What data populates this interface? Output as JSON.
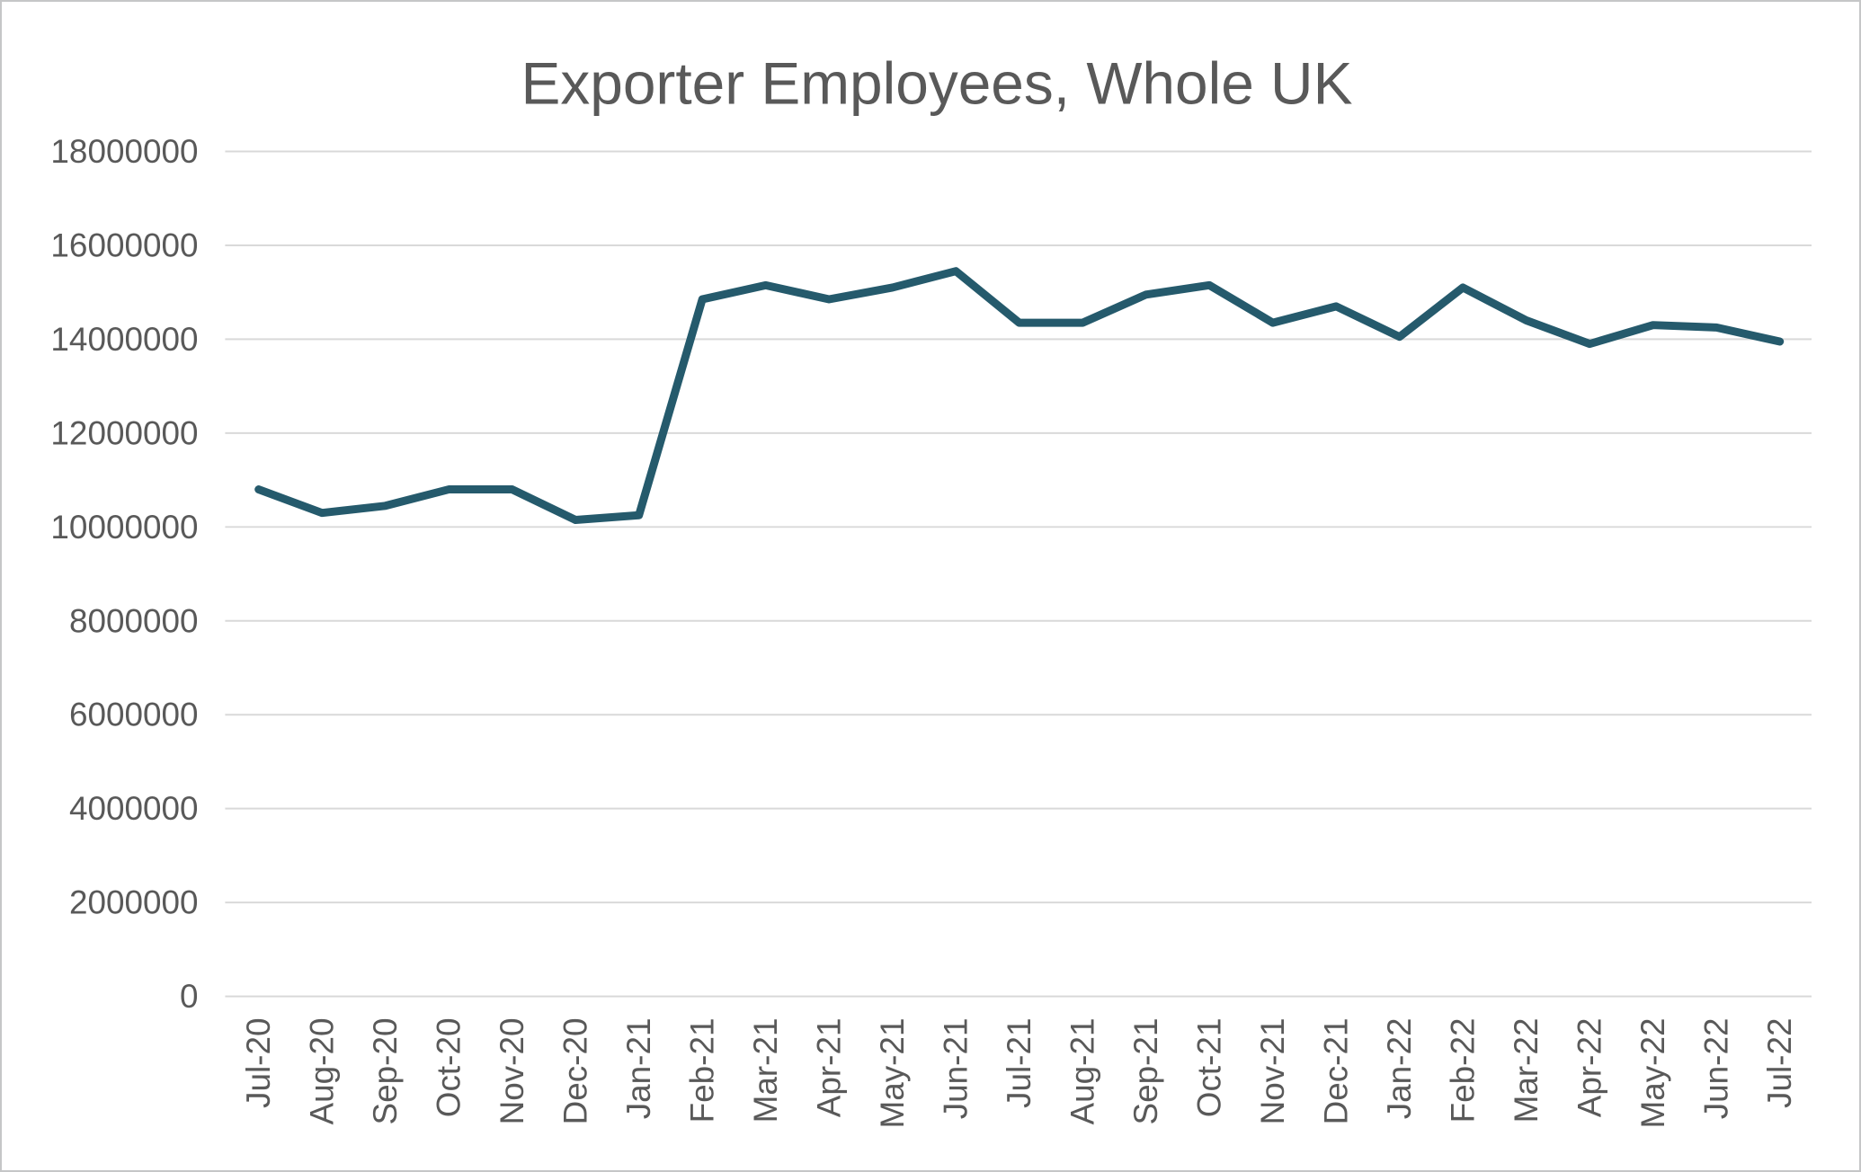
{
  "frame": {
    "background": "#ffffff",
    "border_color": "#c5c6c7"
  },
  "chart_data": {
    "type": "line",
    "title": "Exporter Employees, Whole UK",
    "categories": [
      "Jul-20",
      "Aug-20",
      "Sep-20",
      "Oct-20",
      "Nov-20",
      "Dec-20",
      "Jan-21",
      "Feb-21",
      "Mar-21",
      "Apr-21",
      "May-21",
      "Jun-21",
      "Jul-21",
      "Aug-21",
      "Sep-21",
      "Oct-21",
      "Nov-21",
      "Dec-21",
      "Jan-22",
      "Feb-22",
      "Mar-22",
      "Apr-22",
      "May-22",
      "Jun-22",
      "Jul-22"
    ],
    "values": [
      10800000,
      10300000,
      10450000,
      10800000,
      10800000,
      10150000,
      10250000,
      14850000,
      15150000,
      14850000,
      15100000,
      15450000,
      14350000,
      14350000,
      14950000,
      15150000,
      14350000,
      14700000,
      14050000,
      15100000,
      14400000,
      13900000,
      14300000,
      14250000,
      13950000
    ],
    "xlabel": "",
    "ylabel": "",
    "ylim": [
      0,
      18000000
    ],
    "ytick_values": [
      0,
      2000000,
      4000000,
      6000000,
      8000000,
      10000000,
      12000000,
      14000000,
      16000000,
      18000000
    ],
    "ytick_labels": [
      "0",
      "2000000",
      "4000000",
      "6000000",
      "8000000",
      "10000000",
      "12000000",
      "14000000",
      "16000000",
      "18000000"
    ],
    "x_tick_rotation_degrees": 90,
    "grid": true,
    "legend": false,
    "colors": {
      "line": "#255a6c",
      "grid": "#d9d9d9",
      "text": "#595959",
      "title": "#595959"
    }
  }
}
